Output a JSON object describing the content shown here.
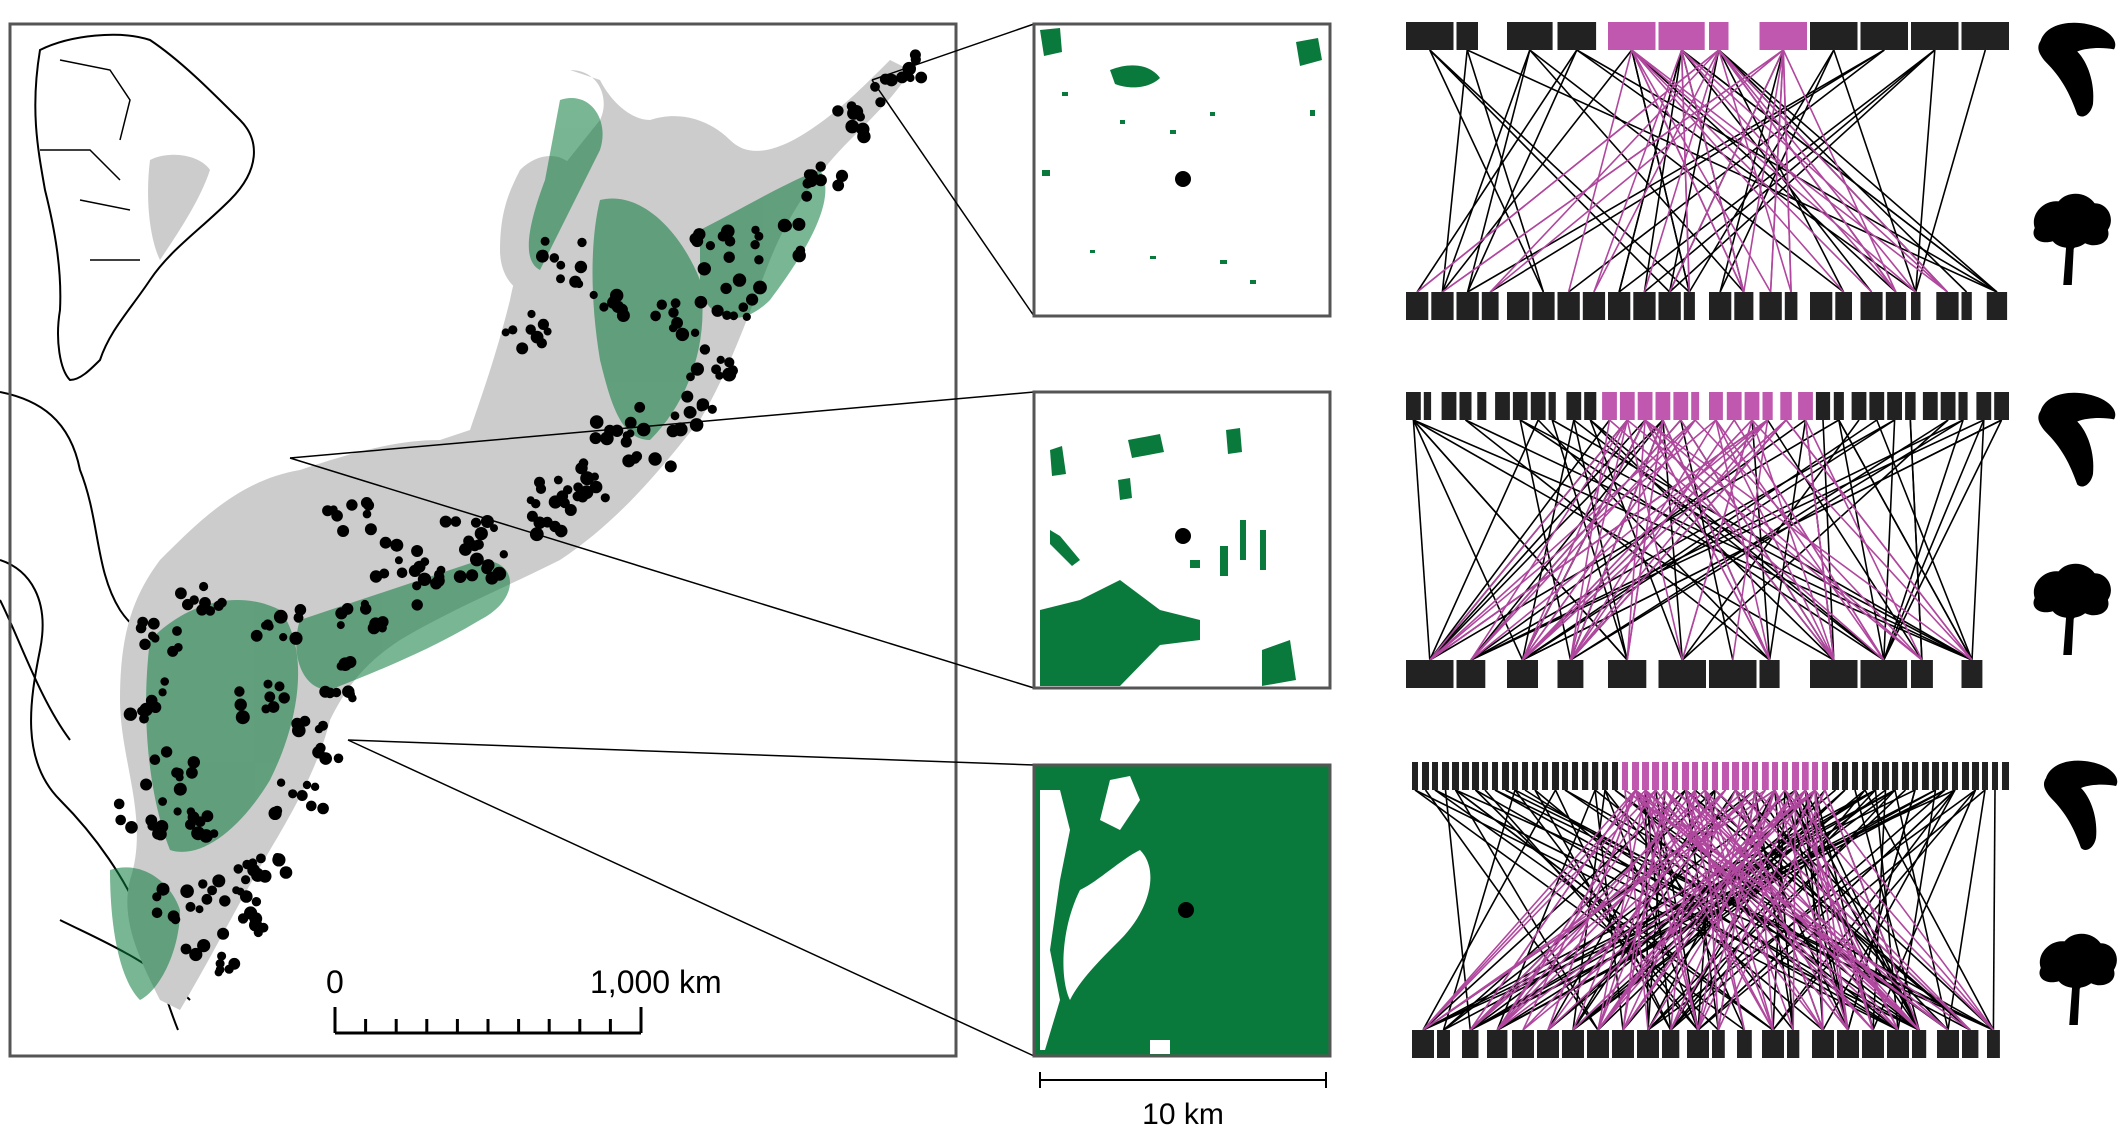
{
  "map": {
    "scale_start": "0",
    "scale_end": "1,000 km",
    "scale_ticks": 10
  },
  "insets": {
    "scale_label": "10 km"
  },
  "colors": {
    "forest": "#0a7a3c",
    "biome": "#cccccc",
    "point": "#000000",
    "node": "#222222",
    "link_black": "#000000",
    "link_magenta": "#b0479e",
    "node_magenta": "#c058b0",
    "frame": "#555555"
  },
  "icons": {
    "animal": "toucan-icon",
    "plant": "tree-icon"
  },
  "networks": [
    {
      "id": "top",
      "top_nodes": 12,
      "bottom_nodes": 24,
      "black_links": 44,
      "magenta_links": 34
    },
    {
      "id": "middle",
      "top_nodes": 34,
      "bottom_nodes": 12,
      "black_links": 70,
      "magenta_links": 56
    },
    {
      "id": "bottom",
      "top_nodes": 60,
      "bottom_nodes": 24,
      "black_links": 120,
      "magenta_links": 96
    }
  ]
}
